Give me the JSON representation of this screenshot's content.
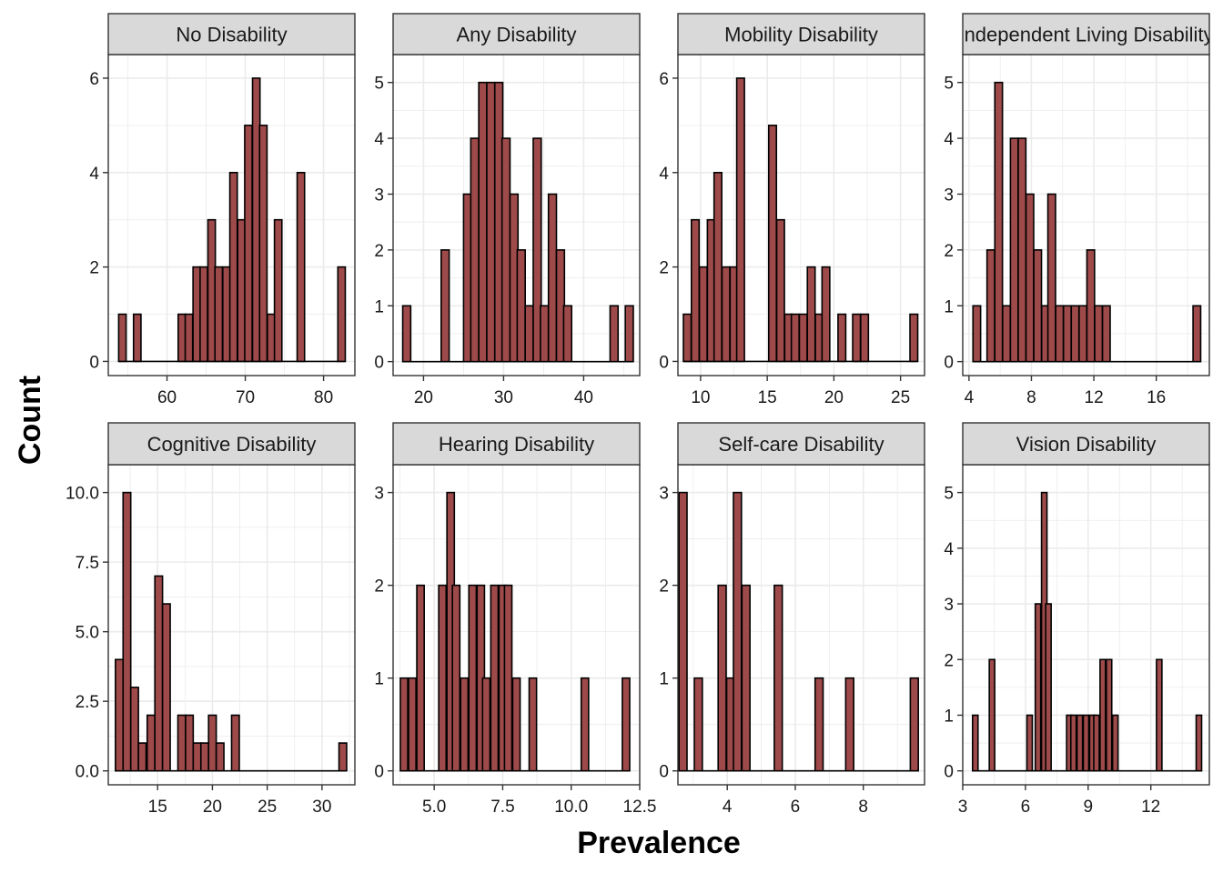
{
  "figure": {
    "xlabel": "Prevalence",
    "ylabel": "Count",
    "colors": {
      "bar_fill": "#9E4A4A",
      "bar_stroke": "#000000",
      "strip_fill": "#D9D9D9",
      "grid": "#EBEBEB",
      "panel_border": "#333333"
    }
  },
  "chart_data": [
    {
      "type": "bar",
      "title": "No Disability",
      "binwidth": 0.95,
      "x": [
        54.3,
        56.2,
        61.9,
        62.8,
        63.8,
        64.7,
        65.7,
        66.6,
        67.6,
        68.5,
        69.5,
        70.4,
        71.4,
        72.3,
        73.3,
        74.2,
        77.1,
        82.3
      ],
      "values": [
        1,
        1,
        1,
        1,
        2,
        2,
        3,
        2,
        2,
        4,
        3,
        5,
        6,
        5,
        1,
        3,
        4,
        2
      ],
      "xlim": [
        52.5,
        84.0
      ],
      "ylim": [
        -0.3,
        6.5
      ],
      "xticks": [
        60,
        70,
        80
      ],
      "xtick_labels": [
        "60",
        "70",
        "80"
      ],
      "yticks": [
        0,
        2,
        4,
        6
      ],
      "ytick_labels": [
        "0",
        "2",
        "4",
        "6"
      ]
    },
    {
      "type": "bar",
      "title": "Any Disability",
      "binwidth": 1.0,
      "x": [
        17.9,
        22.7,
        25.5,
        26.4,
        27.4,
        28.4,
        29.4,
        30.3,
        31.3,
        32.2,
        33.2,
        34.2,
        35.1,
        36.1,
        37.1,
        38.0,
        43.8,
        45.7
      ],
      "values": [
        1,
        2,
        3,
        4,
        5,
        5,
        5,
        4,
        3,
        2,
        1,
        4,
        1,
        3,
        2,
        1,
        1,
        1
      ],
      "xlim": [
        16.2,
        47.0
      ],
      "ylim": [
        -0.25,
        5.5
      ],
      "xticks": [
        20,
        30,
        40
      ],
      "xtick_labels": [
        "20",
        "30",
        "40"
      ],
      "yticks": [
        0,
        1,
        2,
        3,
        4,
        5
      ],
      "ytick_labels": [
        "0",
        "1",
        "2",
        "3",
        "4",
        "5"
      ]
    },
    {
      "type": "bar",
      "title": "Mobility Disability",
      "binwidth": 0.58,
      "x": [
        9.0,
        9.6,
        10.2,
        10.8,
        11.3,
        11.9,
        12.5,
        13.0,
        15.4,
        16.0,
        16.6,
        17.1,
        17.7,
        18.3,
        18.9,
        19.4,
        20.6,
        21.7,
        22.3,
        26.0
      ],
      "values": [
        1,
        3,
        2,
        3,
        4,
        2,
        2,
        6,
        5,
        3,
        1,
        1,
        1,
        2,
        1,
        2,
        1,
        1,
        1,
        1
      ],
      "xlim": [
        8.3,
        26.8
      ],
      "ylim": [
        -0.3,
        6.5
      ],
      "xticks": [
        10,
        15,
        20,
        25
      ],
      "xtick_labels": [
        "10",
        "15",
        "20",
        "25"
      ],
      "yticks": [
        0,
        2,
        4,
        6
      ],
      "ytick_labels": [
        "0",
        "2",
        "4",
        "6"
      ]
    },
    {
      "type": "bar",
      "title": "Independent Living Disability",
      "binwidth": 0.49,
      "x": [
        4.5,
        5.4,
        5.9,
        6.4,
        6.9,
        7.4,
        7.9,
        8.4,
        8.9,
        9.3,
        9.8,
        10.3,
        10.8,
        11.3,
        11.8,
        12.3,
        12.8,
        18.6
      ],
      "values": [
        1,
        2,
        5,
        1,
        4,
        4,
        3,
        2,
        1,
        3,
        1,
        1,
        1,
        1,
        2,
        1,
        1,
        1
      ],
      "xlim": [
        3.6,
        19.4
      ],
      "ylim": [
        -0.25,
        5.5
      ],
      "xticks": [
        4,
        8,
        12,
        16
      ],
      "xtick_labels": [
        "4",
        "8",
        "12",
        "16"
      ],
      "yticks": [
        0,
        1,
        2,
        3,
        4,
        5
      ],
      "ytick_labels": [
        "0",
        "1",
        "2",
        "3",
        "4",
        "5"
      ]
    },
    {
      "type": "bar",
      "title": "Cognitive Disability",
      "binwidth": 0.7,
      "x": [
        11.5,
        12.2,
        12.9,
        13.6,
        14.4,
        15.1,
        15.8,
        17.2,
        17.9,
        18.6,
        19.3,
        20.0,
        20.7,
        22.1,
        31.9
      ],
      "values": [
        4,
        10,
        3,
        1,
        2,
        7,
        6,
        2,
        2,
        1,
        1,
        2,
        1,
        2,
        1
      ],
      "xlim": [
        10.5,
        33.0
      ],
      "ylim": [
        -0.5,
        11.0
      ],
      "xticks": [
        15,
        20,
        25,
        30
      ],
      "xtick_labels": [
        "15",
        "20",
        "25",
        "30"
      ],
      "yticks": [
        0.0,
        2.5,
        5.0,
        7.5,
        10.0
      ],
      "ytick_labels": [
        "0.0",
        "2.5",
        "5.0",
        "7.5",
        "10.0"
      ]
    },
    {
      "type": "bar",
      "title": "Hearing Disability",
      "binwidth": 0.27,
      "x": [
        3.9,
        4.2,
        4.5,
        5.3,
        5.6,
        5.8,
        6.1,
        6.4,
        6.7,
        6.9,
        7.2,
        7.5,
        7.7,
        8.0,
        8.6,
        10.5,
        12.0
      ],
      "values": [
        1,
        1,
        2,
        2,
        3,
        2,
        1,
        2,
        2,
        1,
        2,
        2,
        2,
        1,
        1,
        1,
        1
      ],
      "xlim": [
        3.5,
        12.5
      ],
      "ylim": [
        -0.15,
        3.3
      ],
      "xticks": [
        5.0,
        7.5,
        10.0,
        12.5
      ],
      "xtick_labels": [
        "5.0",
        "7.5",
        "10.0",
        "12.5"
      ],
      "yticks": [
        0,
        1,
        2,
        3
      ],
      "ytick_labels": [
        "0",
        "1",
        "2",
        "3"
      ]
    },
    {
      "type": "bar",
      "title": "Self-care Disability",
      "binwidth": 0.235,
      "x": [
        2.7,
        3.15,
        3.85,
        4.1,
        4.3,
        4.55,
        5.5,
        6.7,
        7.6,
        9.5
      ],
      "values": [
        3,
        1,
        2,
        1,
        3,
        2,
        2,
        1,
        1,
        1
      ],
      "xlim": [
        2.55,
        9.8
      ],
      "ylim": [
        -0.15,
        3.3
      ],
      "xticks": [
        4,
        6,
        8
      ],
      "xtick_labels": [
        "4",
        "6",
        "8"
      ],
      "yticks": [
        0,
        1,
        2,
        3
      ],
      "ytick_labels": [
        "0",
        "1",
        "2",
        "3"
      ]
    },
    {
      "type": "bar",
      "title": "Vision Disability",
      "binwidth": 0.26,
      "x": [
        3.6,
        4.4,
        6.2,
        6.6,
        6.9,
        7.1,
        8.1,
        8.3,
        8.6,
        8.9,
        9.2,
        9.4,
        9.7,
        10.0,
        10.3,
        12.4,
        14.3
      ],
      "values": [
        1,
        2,
        1,
        3,
        5,
        3,
        1,
        1,
        1,
        1,
        1,
        1,
        2,
        2,
        1,
        2,
        1
      ],
      "xlim": [
        3.0,
        14.8
      ],
      "ylim": [
        -0.25,
        5.5
      ],
      "xticks": [
        3,
        6,
        9,
        12
      ],
      "xtick_labels": [
        "3",
        "6",
        "9",
        "12"
      ],
      "yticks": [
        0,
        1,
        2,
        3,
        4,
        5
      ],
      "ytick_labels": [
        "0",
        "1",
        "2",
        "3",
        "4",
        "5"
      ]
    }
  ]
}
